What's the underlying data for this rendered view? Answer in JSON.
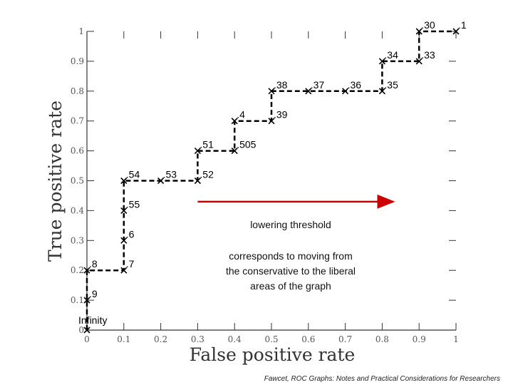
{
  "chart_data": {
    "type": "line",
    "title": "",
    "xlabel": "False positive rate",
    "ylabel": "True positive rate",
    "xlim": [
      0,
      1
    ],
    "ylim": [
      0,
      1
    ],
    "xticks": [
      "0",
      "0.1",
      "0.2",
      "0.3",
      "0.4",
      "0.5",
      "0.6",
      "0.7",
      "0.8",
      "0.9",
      "1"
    ],
    "yticks": [
      "0",
      "0.1",
      "0.2",
      "0.3",
      "0.4",
      "0.5",
      "0.6",
      "0.7",
      "0.8",
      "0.9",
      "1"
    ],
    "grid": false,
    "line_color": "#000000",
    "points": [
      {
        "label": "Infinity",
        "x": 0.0,
        "y": 0.0
      },
      {
        "label": ".9",
        "x": 0.0,
        "y": 0.1
      },
      {
        "label": ".8",
        "x": 0.0,
        "y": 0.2
      },
      {
        "label": ".7",
        "x": 0.1,
        "y": 0.2
      },
      {
        "label": ".6",
        "x": 0.1,
        "y": 0.3
      },
      {
        "label": ".55",
        "x": 0.1,
        "y": 0.4
      },
      {
        "label": ".54",
        "x": 0.1,
        "y": 0.5
      },
      {
        "label": ".53",
        "x": 0.2,
        "y": 0.5
      },
      {
        "label": ".52",
        "x": 0.3,
        "y": 0.5
      },
      {
        "label": ".51",
        "x": 0.3,
        "y": 0.6
      },
      {
        "label": ".505",
        "x": 0.4,
        "y": 0.6
      },
      {
        "label": ".4",
        "x": 0.4,
        "y": 0.7
      },
      {
        "label": ".39",
        "x": 0.5,
        "y": 0.7
      },
      {
        "label": ".38",
        "x": 0.5,
        "y": 0.8
      },
      {
        "label": ".37",
        "x": 0.6,
        "y": 0.8
      },
      {
        "label": ".36",
        "x": 0.7,
        "y": 0.8
      },
      {
        "label": ".35",
        "x": 0.8,
        "y": 0.8
      },
      {
        "label": ".34",
        "x": 0.8,
        "y": 0.9
      },
      {
        "label": ".33",
        "x": 0.9,
        "y": 0.9
      },
      {
        "label": ".30",
        "x": 0.9,
        "y": 1.0
      },
      {
        "label": ".1",
        "x": 1.0,
        "y": 1.0
      }
    ],
    "annotation": {
      "arrow_from": [
        0.3,
        0.43
      ],
      "arrow_to": [
        0.83,
        0.43
      ],
      "arrow_color": "#cc0000",
      "heading": "lowering threshold",
      "lines": [
        "corresponds to moving from",
        "the conservative to the liberal",
        "areas of the graph"
      ]
    }
  },
  "footer": {
    "credit": "Fawcet, ROC Graphs: Notes and Practical Considerations for Researchers"
  }
}
